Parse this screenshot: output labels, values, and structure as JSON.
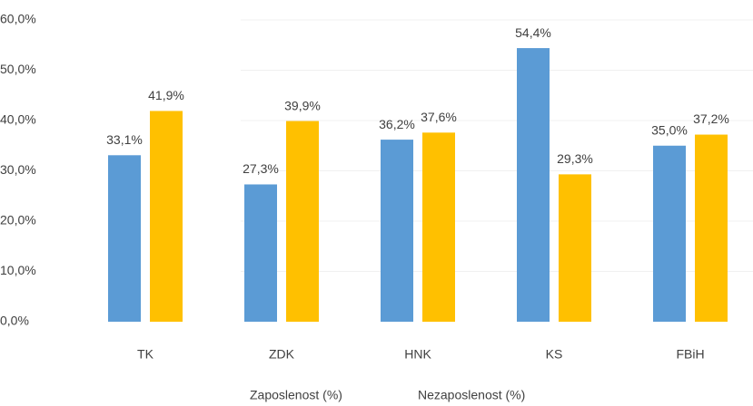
{
  "chart_data": {
    "type": "bar",
    "categories": [
      "TK",
      "ZDK",
      "HNK",
      "KS",
      "FBiH"
    ],
    "series": [
      {
        "name": "Zaposlenost (%)",
        "color": "#5b9bd5",
        "values": [
          33.1,
          27.3,
          36.2,
          54.4,
          35.0
        ],
        "value_labels": [
          "33,1%",
          "27,3%",
          "36,2%",
          "54,4%",
          "35,0%"
        ]
      },
      {
        "name": "Nezaposlenost (%)",
        "color": "#ffc000",
        "values": [
          41.9,
          39.9,
          37.6,
          29.3,
          37.2
        ],
        "value_labels": [
          "41,9%",
          "39,9%",
          "37,6%",
          "29,3%",
          "37,2%"
        ]
      }
    ],
    "ylim": [
      0,
      60
    ],
    "yticks": [
      {
        "value": 0,
        "label": "0,0%"
      },
      {
        "value": 10,
        "label": "10,0%"
      },
      {
        "value": 20,
        "label": "20,0%"
      },
      {
        "value": 30,
        "label": "30,0%"
      },
      {
        "value": 40,
        "label": "40,0%"
      },
      {
        "value": 50,
        "label": "50,0%"
      },
      {
        "value": 60,
        "label": "60,0%"
      }
    ],
    "grid": true
  }
}
